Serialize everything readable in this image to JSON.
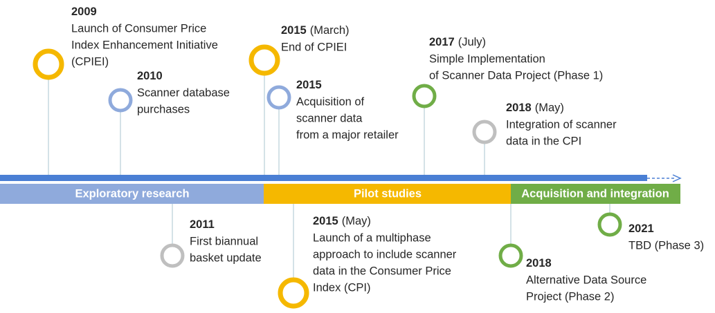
{
  "events": [
    {
      "year": "2009",
      "lines": [
        "Launch of Consumer Price",
        "Index Enhancement Initiative",
        "(CPIEI)"
      ]
    },
    {
      "year": "2010",
      "lines": [
        "Scanner database",
        "purchases"
      ]
    },
    {
      "year": "2015",
      "qualifier": "(March)",
      "lines": [
        "End of CPIEI"
      ]
    },
    {
      "year": "2015",
      "lines": [
        "Acquisition of",
        "scanner data",
        "from a major retailer"
      ]
    },
    {
      "year": "2017",
      "qualifier": "(July)",
      "lines": [
        "Simple Implementation",
        "of Scanner Data Project (Phase 1)"
      ]
    },
    {
      "year": "2018",
      "qualifier": "(May)",
      "lines": [
        "Integration of scanner",
        "data in the CPI"
      ]
    },
    {
      "year": "2011",
      "lines": [
        "First biannual",
        "basket update"
      ]
    },
    {
      "year": "2015",
      "qualifier": "(May)",
      "lines": [
        "Launch of a multiphase",
        "approach to include scanner",
        "data in the Consumer Price",
        "Index (CPI)"
      ]
    },
    {
      "year": "2018",
      "lines": [
        "Alternative Data Source",
        "Project (Phase 2)"
      ]
    },
    {
      "year": "2021",
      "lines": [
        "TBD (Phase 3)"
      ]
    }
  ],
  "phases": [
    "Exploratory research",
    "Pilot studies",
    "Acquisition and integration"
  ]
}
